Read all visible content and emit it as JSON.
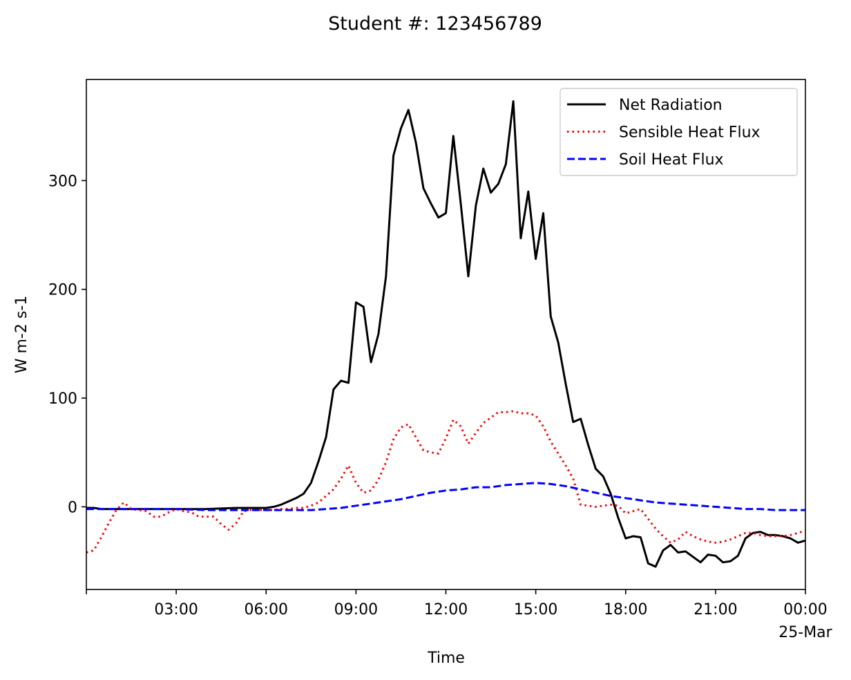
{
  "chart_data": {
    "type": "line",
    "title": "Student #: 123456789",
    "xlabel": "Time",
    "ylabel": "W m-2 s-1",
    "x_range_hours": [
      0,
      24
    ],
    "ylim": [
      -76,
      393
    ],
    "x_ticks": [
      {
        "hour": 3,
        "label": "03:00",
        "sublabel": ""
      },
      {
        "hour": 6,
        "label": "06:00",
        "sublabel": ""
      },
      {
        "hour": 9,
        "label": "09:00",
        "sublabel": ""
      },
      {
        "hour": 12,
        "label": "12:00",
        "sublabel": ""
      },
      {
        "hour": 15,
        "label": "15:00",
        "sublabel": ""
      },
      {
        "hour": 18,
        "label": "18:00",
        "sublabel": ""
      },
      {
        "hour": 21,
        "label": "21:00",
        "sublabel": ""
      },
      {
        "hour": 24,
        "label": "00:00",
        "sublabel": "25-Mar"
      }
    ],
    "y_ticks": [
      0,
      100,
      200,
      300
    ],
    "legend_position": "top-right",
    "grid": false,
    "series": [
      {
        "name": "Net Radiation",
        "color": "#000000",
        "style": "solid",
        "x": [
          0,
          0.25,
          0.5,
          1,
          2,
          3,
          4,
          5,
          5.5,
          5.75,
          6,
          6.25,
          6.5,
          6.75,
          7,
          7.25,
          7.5,
          7.75,
          8,
          8.25,
          8.5,
          8.75,
          9,
          9.25,
          9.5,
          9.75,
          10,
          10.25,
          10.5,
          10.75,
          11,
          11.25,
          11.5,
          11.75,
          12,
          12.25,
          12.5,
          12.75,
          13,
          13.25,
          13.5,
          13.75,
          14,
          14.25,
          14.5,
          14.75,
          15,
          15.25,
          15.5,
          15.75,
          16,
          16.25,
          16.5,
          16.75,
          17,
          17.25,
          17.5,
          17.75,
          18,
          18.25,
          18.5,
          18.75,
          19,
          19.25,
          19.5,
          19.75,
          20,
          20.25,
          20.5,
          20.75,
          21,
          21.25,
          21.5,
          21.75,
          22,
          22.25,
          22.5,
          22.75,
          23,
          23.25,
          23.5,
          23.75,
          24
        ],
        "y": [
          -1,
          -1,
          -2,
          -2,
          -2,
          -2,
          -2,
          -1,
          -1,
          -1,
          -1,
          0,
          2,
          5,
          8,
          12,
          22,
          42,
          64,
          108,
          116,
          114,
          188,
          184,
          133,
          159,
          212,
          323,
          348,
          365,
          335,
          293,
          279,
          266,
          270,
          341,
          278,
          212,
          277,
          311,
          289,
          297,
          315,
          373,
          247,
          290,
          228,
          270,
          175,
          151,
          113,
          78,
          81,
          57,
          35,
          28,
          12,
          -10,
          -29,
          -27,
          -28,
          -52,
          -55,
          -40,
          -35,
          -42,
          -41,
          -46,
          -51,
          -44,
          -45,
          -51,
          -50,
          -45,
          -29,
          -24,
          -23,
          -26,
          -26,
          -27,
          -29,
          -33,
          -31
        ]
      },
      {
        "name": "Sensible Heat Flux",
        "color": "#ff0000",
        "style": "dotted",
        "x": [
          0,
          0.25,
          0.5,
          0.75,
          1,
          1.25,
          1.5,
          1.75,
          2,
          2.25,
          2.5,
          2.75,
          3,
          3.25,
          3.5,
          3.75,
          4,
          4.25,
          4.5,
          4.75,
          5,
          5.25,
          5.5,
          5.75,
          6,
          6.25,
          6.5,
          6.75,
          7,
          7.25,
          7.5,
          7.75,
          8,
          8.25,
          8.5,
          8.75,
          9,
          9.25,
          9.5,
          9.75,
          10,
          10.25,
          10.5,
          10.75,
          11,
          11.25,
          11.5,
          11.75,
          12,
          12.25,
          12.5,
          12.75,
          13,
          13.25,
          13.5,
          13.75,
          14,
          14.25,
          14.5,
          14.75,
          15,
          15.25,
          15.5,
          15.75,
          16,
          16.25,
          16.5,
          16.75,
          17,
          17.25,
          17.5,
          17.75,
          18,
          18.25,
          18.5,
          18.75,
          19,
          19.25,
          19.5,
          19.75,
          20,
          20.25,
          20.5,
          20.75,
          21,
          21.25,
          21.5,
          21.75,
          22,
          22.25,
          22.5,
          22.75,
          23,
          23.25,
          23.5,
          23.75,
          24
        ],
        "y": [
          -42,
          -40,
          -28,
          -15,
          -3,
          4,
          -2,
          -3,
          -4,
          -9,
          -9,
          -5,
          -2,
          -4,
          -5,
          -9,
          -9,
          -9,
          -16,
          -21,
          -15,
          -4,
          -3,
          -3,
          -3,
          -3,
          -2,
          -2,
          -1,
          -1,
          1,
          4,
          10,
          16,
          26,
          38,
          22,
          13,
          15,
          25,
          41,
          62,
          73,
          76,
          64,
          52,
          50,
          49,
          63,
          80,
          74,
          58,
          68,
          77,
          82,
          87,
          87,
          88,
          86,
          86,
          84,
          74,
          60,
          49,
          38,
          26,
          2,
          1,
          0,
          1,
          2,
          1,
          -6,
          -4,
          -2,
          -11,
          -20,
          -27,
          -33,
          -30,
          -23,
          -27,
          -30,
          -32,
          -33,
          -32,
          -30,
          -27,
          -24,
          -24,
          -26,
          -27,
          -27,
          -27,
          -26,
          -24,
          -22
        ]
      },
      {
        "name": "Soil Heat Flux",
        "color": "#0000ff",
        "style": "dashed",
        "x": [
          0,
          1,
          2,
          3,
          4,
          5,
          6,
          6.5,
          7,
          7.5,
          8,
          8.5,
          9,
          9.5,
          10,
          10.5,
          11,
          11.5,
          12,
          12.5,
          13,
          13.5,
          14,
          14.5,
          15,
          15.5,
          16,
          16.5,
          17,
          17.5,
          18,
          18.5,
          19,
          19.5,
          20,
          20.5,
          21,
          21.5,
          22,
          22.5,
          23,
          23.5,
          24
        ],
        "y": [
          -2,
          -2,
          -2,
          -2,
          -3,
          -3,
          -3,
          -3,
          -3,
          -3,
          -2,
          -1,
          1,
          3,
          5,
          7,
          10,
          13,
          15,
          16,
          18,
          18,
          20,
          21,
          22,
          21,
          19,
          16,
          13,
          10,
          8,
          6,
          4,
          3,
          2,
          1,
          0,
          -1,
          -2,
          -2,
          -3,
          -3,
          -3
        ]
      }
    ]
  }
}
